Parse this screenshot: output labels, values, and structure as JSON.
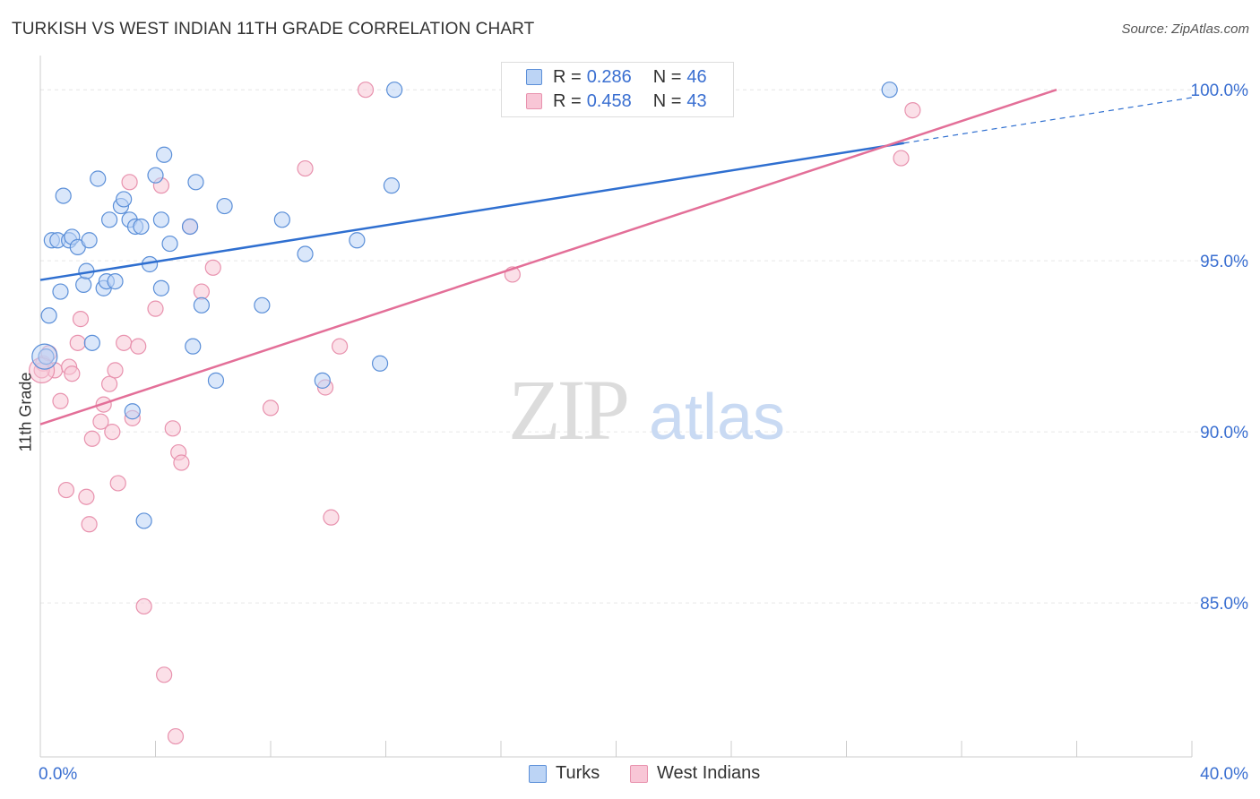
{
  "header": {
    "title": "TURKISH VS WEST INDIAN 11TH GRADE CORRELATION CHART",
    "source": "Source: ZipAtlas.com"
  },
  "watermark": {
    "zip": "ZIP",
    "atlas": "atlas"
  },
  "legend": {
    "series": [
      {
        "r_label": "R =",
        "r_value": "0.286",
        "n_label": "N =",
        "n_value": "46"
      },
      {
        "r_label": "R =",
        "r_value": "0.458",
        "n_label": "N =",
        "n_value": "43"
      }
    ]
  },
  "bottom_legend": {
    "turks": "Turks",
    "west_indians": "West Indians"
  },
  "colors": {
    "turks_fill": "#bcd4f5",
    "turks_stroke": "#5b8fd8",
    "turks_line": "#2f6fd0",
    "wi_fill": "#f8c6d6",
    "wi_stroke": "#e892ae",
    "wi_line": "#e36f98",
    "axis_text": "#3a6fd1",
    "grid": "#e6e6e6"
  },
  "chart_data": {
    "type": "scatter",
    "title": "TURKISH VS WEST INDIAN 11TH GRADE CORRELATION CHART",
    "xlabel": "",
    "ylabel": "11th Grade",
    "xlim": [
      0,
      40
    ],
    "ylim": [
      80.5,
      101.0
    ],
    "x_tick_labels": [
      {
        "value": 0,
        "label": "0.0%"
      },
      {
        "value": 40,
        "label": "40.0%"
      }
    ],
    "y_tick_labels": [
      {
        "value": 85,
        "label": "85.0%"
      },
      {
        "value": 90,
        "label": "90.0%"
      },
      {
        "value": 95,
        "label": "95.0%"
      },
      {
        "value": 100,
        "label": "100.0%"
      }
    ],
    "series": [
      {
        "name": "Turks",
        "R": 0.286,
        "N": 46,
        "trend": {
          "x0": 0,
          "y0": 94.44,
          "x1": 30.0,
          "y1": 98.44,
          "dash_to_x": 40,
          "dash_to_y": 99.77
        },
        "points": [
          [
            0.2,
            92.2
          ],
          [
            0.3,
            93.4
          ],
          [
            0.4,
            95.6
          ],
          [
            0.6,
            95.6
          ],
          [
            0.7,
            94.1
          ],
          [
            0.8,
            96.9
          ],
          [
            1.0,
            95.6
          ],
          [
            1.1,
            95.7
          ],
          [
            1.3,
            95.4
          ],
          [
            1.5,
            94.3
          ],
          [
            1.6,
            94.7
          ],
          [
            1.7,
            95.6
          ],
          [
            1.8,
            92.6
          ],
          [
            2.0,
            97.4
          ],
          [
            2.2,
            94.2
          ],
          [
            2.3,
            94.4
          ],
          [
            2.4,
            96.2
          ],
          [
            2.6,
            94.4
          ],
          [
            2.8,
            96.6
          ],
          [
            2.9,
            96.8
          ],
          [
            3.1,
            96.2
          ],
          [
            3.2,
            90.6
          ],
          [
            3.3,
            96.0
          ],
          [
            3.5,
            96.0
          ],
          [
            3.6,
            87.4
          ],
          [
            3.8,
            94.9
          ],
          [
            4.0,
            97.5
          ],
          [
            4.2,
            96.2
          ],
          [
            4.2,
            94.2
          ],
          [
            4.3,
            98.1
          ],
          [
            4.5,
            95.5
          ],
          [
            5.2,
            96.0
          ],
          [
            5.3,
            92.5
          ],
          [
            5.4,
            97.3
          ],
          [
            5.6,
            93.7
          ],
          [
            6.1,
            91.5
          ],
          [
            6.4,
            96.6
          ],
          [
            7.7,
            93.7
          ],
          [
            8.4,
            96.2
          ],
          [
            9.2,
            95.2
          ],
          [
            9.8,
            91.5
          ],
          [
            11.0,
            95.6
          ],
          [
            11.8,
            92.0
          ],
          [
            12.2,
            97.2
          ],
          [
            12.3,
            100.0
          ],
          [
            29.5,
            100.0
          ]
        ]
      },
      {
        "name": "West Indians",
        "R": 0.458,
        "N": 43,
        "trend": {
          "x0": 0,
          "y0": 90.22,
          "x1": 35.3,
          "y1": 100.0
        },
        "points": [
          [
            0.1,
            92.0
          ],
          [
            0.3,
            92.3
          ],
          [
            0.5,
            91.8
          ],
          [
            0.7,
            90.9
          ],
          [
            0.9,
            88.3
          ],
          [
            1.0,
            91.9
          ],
          [
            1.1,
            91.7
          ],
          [
            1.3,
            92.6
          ],
          [
            1.4,
            93.3
          ],
          [
            1.6,
            88.1
          ],
          [
            1.7,
            87.3
          ],
          [
            1.8,
            89.8
          ],
          [
            2.1,
            90.3
          ],
          [
            2.2,
            90.8
          ],
          [
            2.4,
            91.4
          ],
          [
            2.5,
            90.0
          ],
          [
            2.6,
            91.8
          ],
          [
            2.7,
            88.5
          ],
          [
            2.9,
            92.6
          ],
          [
            3.1,
            97.3
          ],
          [
            3.2,
            90.4
          ],
          [
            3.4,
            92.5
          ],
          [
            3.6,
            84.9
          ],
          [
            4.0,
            93.6
          ],
          [
            4.2,
            97.2
          ],
          [
            4.3,
            82.9
          ],
          [
            4.6,
            90.1
          ],
          [
            4.7,
            81.1
          ],
          [
            4.8,
            89.4
          ],
          [
            4.9,
            89.1
          ],
          [
            5.2,
            96.0
          ],
          [
            5.6,
            94.1
          ],
          [
            6.0,
            94.8
          ],
          [
            8.0,
            90.7
          ],
          [
            9.2,
            97.7
          ],
          [
            9.9,
            91.3
          ],
          [
            10.1,
            87.5
          ],
          [
            10.4,
            92.5
          ],
          [
            11.3,
            100.0
          ],
          [
            16.4,
            94.6
          ],
          [
            29.9,
            98.0
          ],
          [
            30.3,
            99.4
          ],
          [
            0.05,
            91.8
          ]
        ]
      }
    ]
  }
}
